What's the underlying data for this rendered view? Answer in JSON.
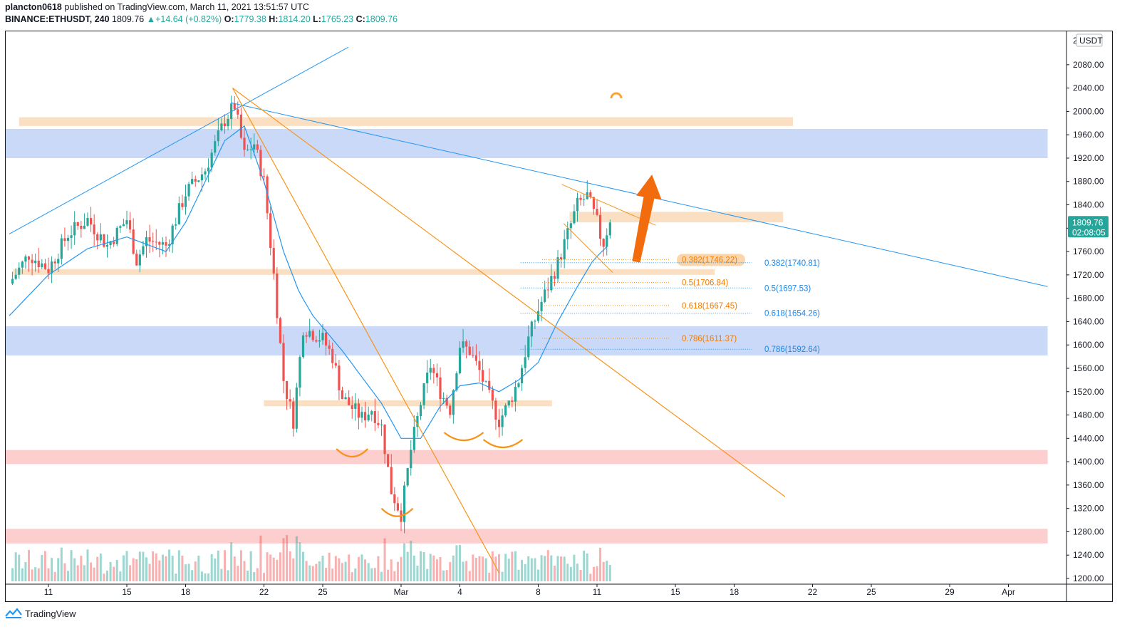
{
  "header": {
    "author": "plancton0618",
    "published": "published on TradingView.com, March 11, 2021 13:51:57 UTC",
    "symbol": "BINANCE:ETHUSDT, 240",
    "last": "1809.76",
    "change": "+14.64 (+0.82%)",
    "change_arrow": "▲",
    "o_label": "O:",
    "o": "1779.38",
    "h_label": "H:",
    "h": "1814.20",
    "l_label": "L:",
    "l": "1765.23",
    "c_label": "C:",
    "c": "1809.76"
  },
  "price_axis": {
    "currency": "USDT",
    "top_tick_partial": "2",
    "last_price_label": "1809.76",
    "countdown": "02:08:05",
    "last_price_color": "#26a69a"
  },
  "footer": {
    "brand": "TradingView"
  },
  "chart_data": {
    "type": "candlestick",
    "ylim": [
      1190,
      2110
    ],
    "y_ticks": [
      1200,
      1240,
      1280,
      1320,
      1360,
      1400,
      1440,
      1480,
      1520,
      1560,
      1600,
      1640,
      1680,
      1720,
      1760,
      1800,
      1840,
      1880,
      1920,
      1960,
      2000,
      2040,
      2080
    ],
    "x_ticks": [
      {
        "label": "11",
        "day": 11
      },
      {
        "label": "15",
        "day": 15
      },
      {
        "label": "18",
        "day": 18
      },
      {
        "label": "22",
        "day": 22
      },
      {
        "label": "25",
        "day": 25
      },
      {
        "label": "Mar",
        "day": 29
      },
      {
        "label": "4",
        "day": 32
      },
      {
        "label": "8",
        "day": 36
      },
      {
        "label": "11",
        "day": 39
      },
      {
        "label": "15",
        "day": 43
      },
      {
        "label": "18",
        "day": 46
      },
      {
        "label": "22",
        "day": 50
      },
      {
        "label": "25",
        "day": 53
      },
      {
        "label": "29",
        "day": 57
      },
      {
        "label": "Apr",
        "day": 60
      }
    ],
    "x_note": "day = days since Feb 0 (Feb 11 = 11, Mar 1 = 29)",
    "price_path": [
      [
        9,
        1705
      ],
      [
        10,
        1755
      ],
      [
        11,
        1730
      ],
      [
        12,
        1790
      ],
      [
        13,
        1815
      ],
      [
        14,
        1770
      ],
      [
        15,
        1815
      ],
      [
        15.5,
        1745
      ],
      [
        16,
        1780
      ],
      [
        17,
        1770
      ],
      [
        18,
        1860
      ],
      [
        19,
        1900
      ],
      [
        20,
        1985
      ],
      [
        20.5,
        2010
      ],
      [
        21,
        1925
      ],
      [
        21.5,
        1945
      ],
      [
        22,
        1880
      ],
      [
        22.5,
        1720
      ],
      [
        23,
        1540
      ],
      [
        23.5,
        1470
      ],
      [
        24,
        1630
      ],
      [
        25,
        1610
      ],
      [
        25.5,
        1580
      ],
      [
        26,
        1510
      ],
      [
        27,
        1475
      ],
      [
        27.5,
        1490
      ],
      [
        28,
        1460
      ],
      [
        28.5,
        1350
      ],
      [
        29,
        1310
      ],
      [
        29.5,
        1420
      ],
      [
        30,
        1500
      ],
      [
        30.5,
        1565
      ],
      [
        31,
        1520
      ],
      [
        31.5,
        1490
      ],
      [
        32,
        1600
      ],
      [
        32.5,
        1590
      ],
      [
        33,
        1555
      ],
      [
        33.5,
        1510
      ],
      [
        34,
        1470
      ],
      [
        34.5,
        1500
      ],
      [
        35,
        1540
      ],
      [
        35.5,
        1610
      ],
      [
        36,
        1660
      ],
      [
        36.5,
        1700
      ],
      [
        37,
        1740
      ],
      [
        37.5,
        1790
      ],
      [
        38,
        1840
      ],
      [
        38.5,
        1855
      ],
      [
        39,
        1810
      ],
      [
        39.3,
        1770
      ],
      [
        39.5,
        1795
      ],
      [
        39.7,
        1809.76
      ]
    ],
    "ema_path": [
      [
        9,
        1650
      ],
      [
        11,
        1720
      ],
      [
        13,
        1765
      ],
      [
        15,
        1785
      ],
      [
        17,
        1760
      ],
      [
        18,
        1810
      ],
      [
        19,
        1880
      ],
      [
        20,
        1950
      ],
      [
        21,
        1975
      ],
      [
        22,
        1880
      ],
      [
        23,
        1760
      ],
      [
        23.8,
        1690
      ],
      [
        24.5,
        1650
      ],
      [
        26,
        1590
      ],
      [
        27,
        1545
      ],
      [
        28,
        1500
      ],
      [
        29,
        1440
      ],
      [
        30,
        1440
      ],
      [
        31,
        1495
      ],
      [
        32,
        1530
      ],
      [
        33,
        1535
      ],
      [
        34,
        1520
      ],
      [
        35,
        1540
      ],
      [
        36,
        1570
      ],
      [
        37,
        1640
      ],
      [
        38,
        1700
      ],
      [
        38.8,
        1745
      ],
      [
        39.4,
        1765
      ],
      [
        39.7,
        1775
      ]
    ],
    "zones": [
      {
        "kind": "resistance",
        "color": "#f9c99a",
        "from": 1975,
        "to": 1990,
        "x0": 9.5,
        "x1": 49
      },
      {
        "kind": "support",
        "color": "#9cb9f1",
        "from": 1920,
        "to": 1970,
        "x0": 8.5,
        "x1": 62
      },
      {
        "kind": "resistance",
        "color": "#f9c99a",
        "from": 1810,
        "to": 1828,
        "x0": 37.6,
        "x1": 48.5
      },
      {
        "kind": "resistance",
        "color": "#f9c99a",
        "from": 1720,
        "to": 1730,
        "x0": 9.2,
        "x1": 45
      },
      {
        "kind": "support",
        "color": "#9cb9f1",
        "from": 1582,
        "to": 1632,
        "x0": 8.5,
        "x1": 62
      },
      {
        "kind": "resistance",
        "color": "#f9c99a",
        "from": 1495,
        "to": 1505,
        "x0": 22,
        "x1": 36.7
      },
      {
        "kind": "support",
        "color": "#fba5a5",
        "from": 1396,
        "to": 1420,
        "x0": 8.5,
        "x1": 62
      },
      {
        "kind": "support",
        "color": "#fba5a5",
        "from": 1260,
        "to": 1285,
        "x0": 8.5,
        "x1": 62
      }
    ],
    "fib_orange": [
      {
        "label": "0.382(1746.22)",
        "value": 1746.22
      },
      {
        "label": "0.5(1706.84)",
        "value": 1706.84
      },
      {
        "label": "0.618(1667.45)",
        "value": 1667.45
      },
      {
        "label": "0.786(1611.37)",
        "value": 1611.37
      }
    ],
    "fib_blue": [
      {
        "label": "0.382(1740.81)",
        "value": 1740.81
      },
      {
        "label": "0.5(1697.53)",
        "value": 1697.53
      },
      {
        "label": "0.618(1654.26)",
        "value": 1654.26
      },
      {
        "label": "0.786(1592.64)",
        "value": 1592.64
      }
    ],
    "colors": {
      "up": "#26a69a",
      "down": "#ef5350",
      "ema": "#2196f3",
      "orange": "#f7931a",
      "trend_blue": "#2196f3"
    }
  }
}
